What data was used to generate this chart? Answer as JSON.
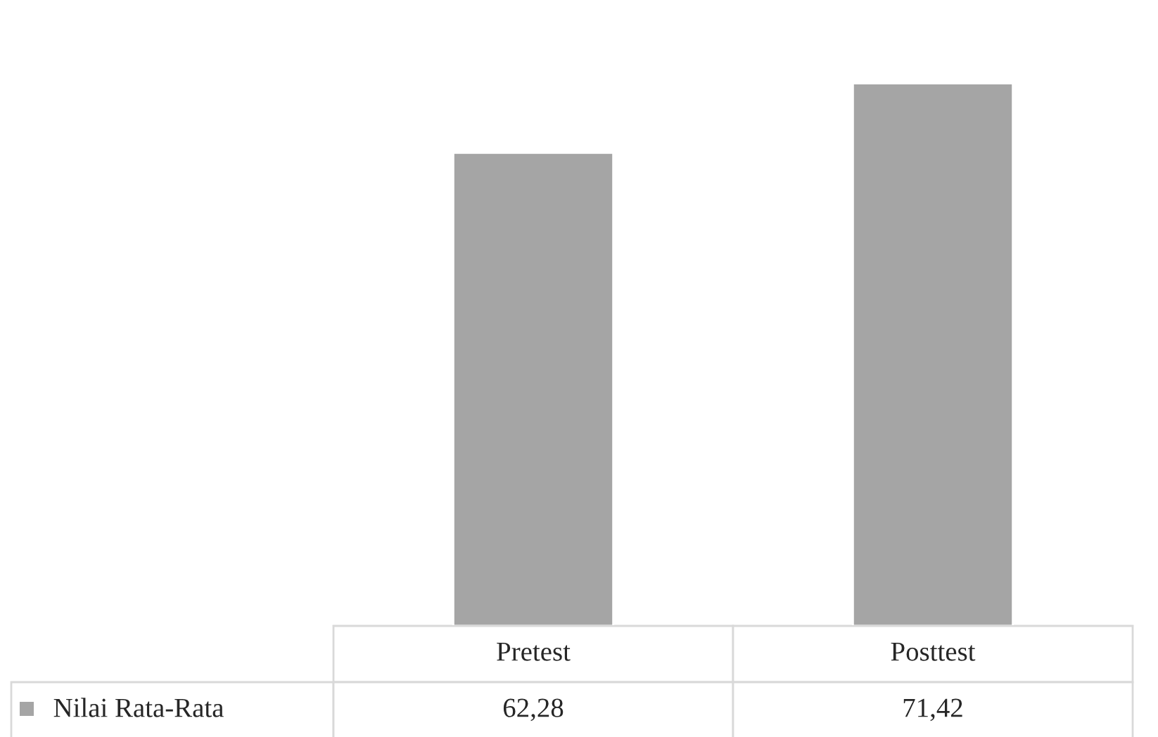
{
  "chart_data": {
    "type": "bar",
    "categories": [
      "Pretest",
      "Posttest"
    ],
    "series": [
      {
        "name": "Nilai Rata-Rata",
        "color": "#a5a5a5",
        "values": [
          62.28,
          71.42
        ],
        "value_labels": [
          "62,28",
          "71,42"
        ]
      }
    ],
    "legend": "bottom"
  }
}
